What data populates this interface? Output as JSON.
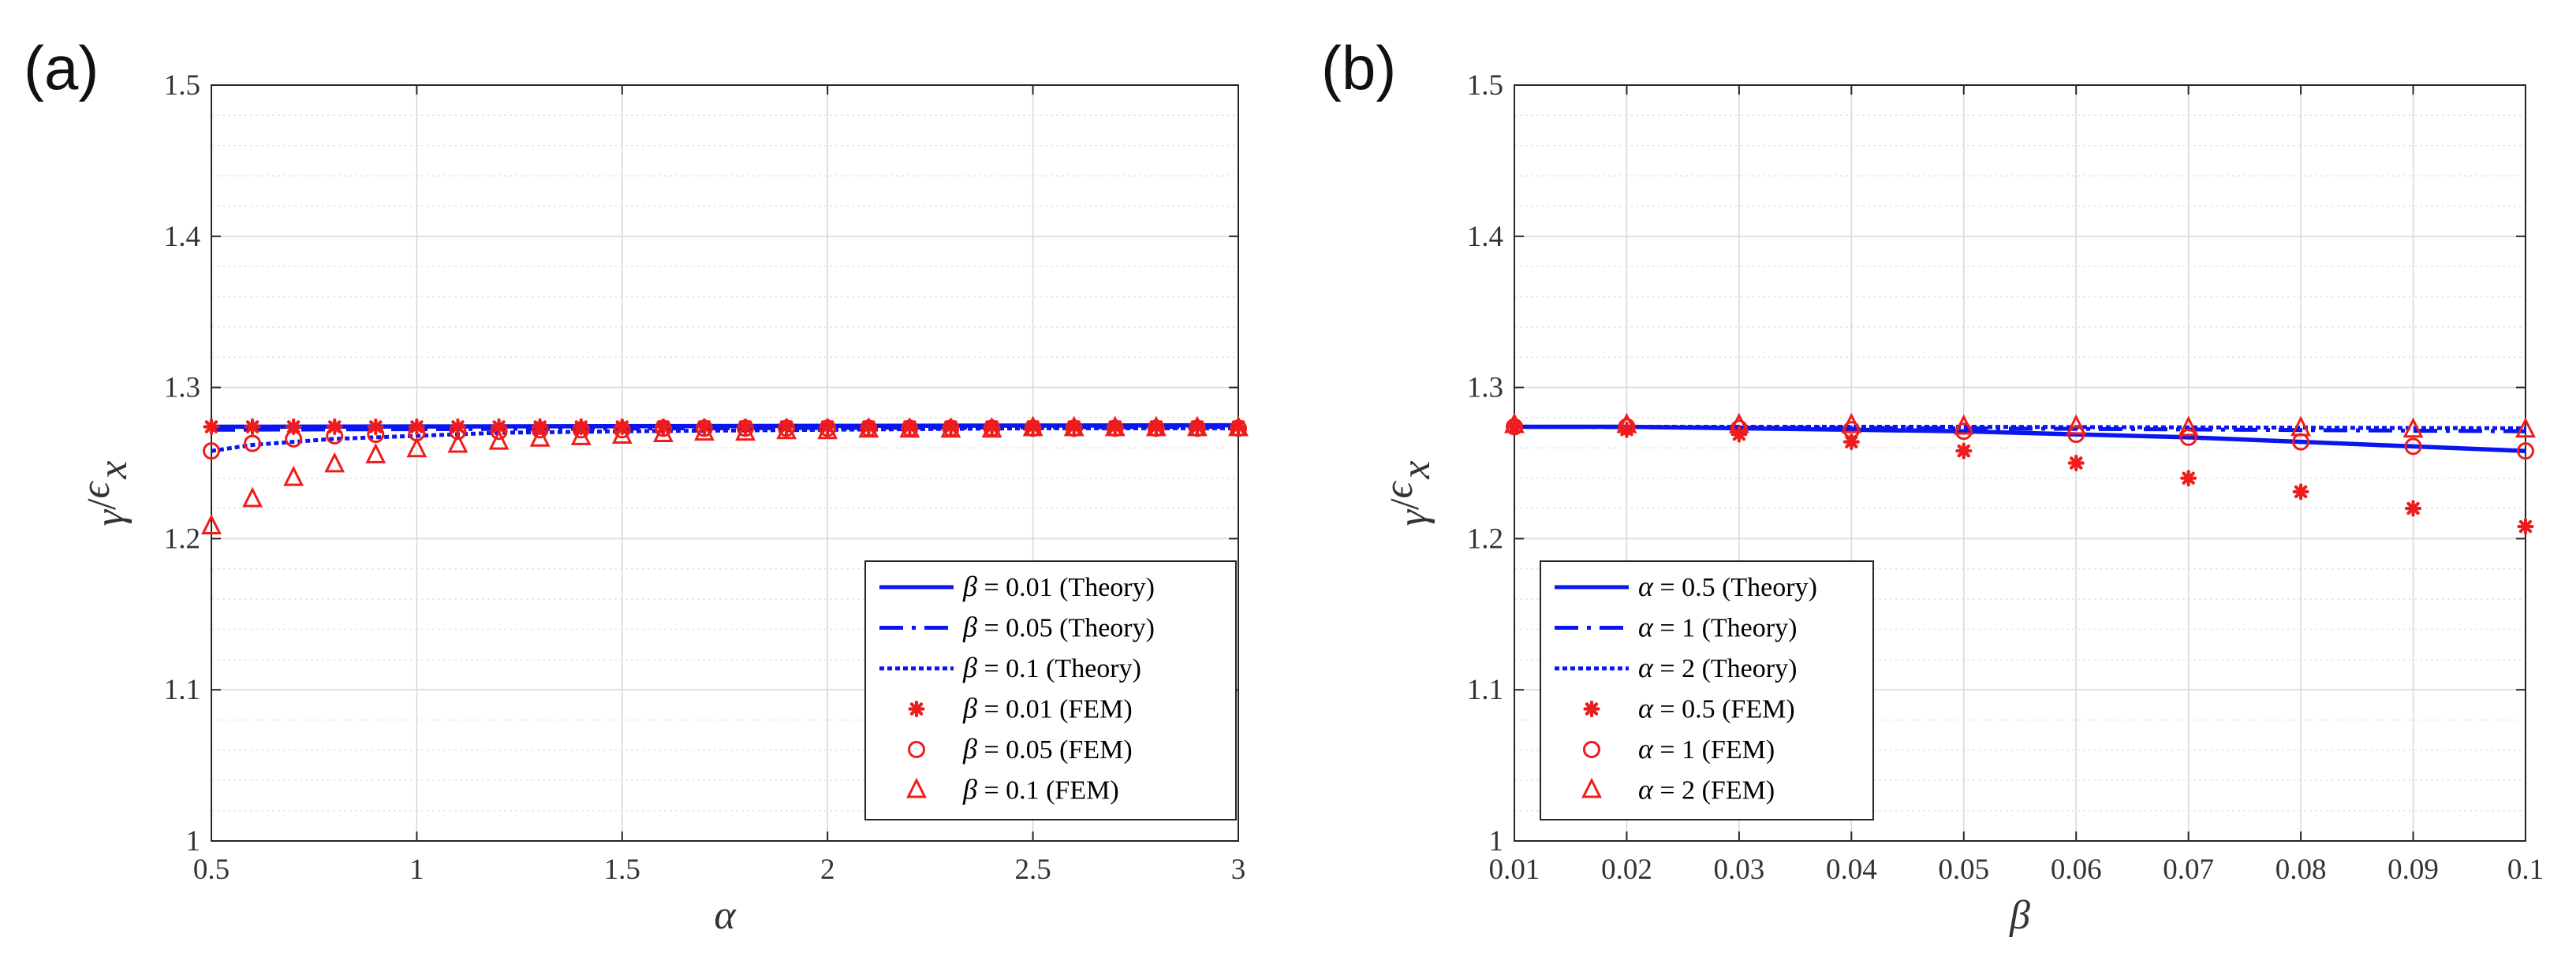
{
  "chart_data": [
    {
      "type": "line",
      "panel_label": "(a)",
      "xlabel": "α",
      "ylabel_num": "γ",
      "ylabel_den": "ϵ",
      "ylabel_sub": "x",
      "xlim": [
        0.5,
        3
      ],
      "ylim": [
        1,
        1.5
      ],
      "xticks": [
        0.5,
        1,
        1.5,
        2,
        2.5,
        3
      ],
      "xtick_labels": [
        "0.5",
        "1",
        "1.5",
        "2",
        "2.5",
        "3"
      ],
      "yticks": [
        1,
        1.1,
        1.2,
        1.3,
        1.4,
        1.5
      ],
      "ytick_labels": [
        "1",
        "1.1",
        "1.2",
        "1.3",
        "1.4",
        "1.5"
      ],
      "grid": true,
      "legend_position": "bottom-right",
      "theory_series": [
        {
          "symbol": "β",
          "label": " = 0.01 (Theory)",
          "style": "solid",
          "x": [
            0.5,
            3
          ],
          "y": [
            1.274,
            1.275
          ]
        },
        {
          "symbol": "β",
          "label": " = 0.05 (Theory)",
          "style": "dashdot",
          "x": [
            0.5,
            3
          ],
          "y": [
            1.272,
            1.274
          ]
        },
        {
          "symbol": "β",
          "label": " = 0.1 (Theory)",
          "style": "dotted",
          "x": [
            0.5,
            0.6,
            0.7,
            0.8,
            1,
            1.2,
            1.5,
            2,
            2.5,
            3
          ],
          "y": [
            1.258,
            1.262,
            1.264,
            1.266,
            1.268,
            1.27,
            1.271,
            1.272,
            1.273,
            1.273
          ]
        }
      ],
      "fem_series": [
        {
          "symbol": "β",
          "label": " = 0.01 (FEM)",
          "marker": "star",
          "x": [
            0.5,
            0.6,
            0.7,
            0.8,
            0.9,
            1.0,
            1.1,
            1.2,
            1.3,
            1.4,
            1.5,
            1.6,
            1.7,
            1.8,
            1.9,
            2.0,
            2.1,
            2.2,
            2.3,
            2.4,
            2.5,
            2.6,
            2.7,
            2.8,
            2.9,
            3.0
          ],
          "y": [
            1.274,
            1.274,
            1.274,
            1.274,
            1.274,
            1.274,
            1.274,
            1.274,
            1.274,
            1.274,
            1.274,
            1.274,
            1.274,
            1.274,
            1.274,
            1.274,
            1.274,
            1.274,
            1.274,
            1.274,
            1.274,
            1.274,
            1.274,
            1.274,
            1.274,
            1.274
          ]
        },
        {
          "symbol": "β",
          "label": " = 0.05 (FEM)",
          "marker": "circle",
          "x": [
            0.5,
            0.6,
            0.7,
            0.8,
            0.9,
            1.0,
            1.1,
            1.2,
            1.3,
            1.4,
            1.5,
            1.6,
            1.7,
            1.8,
            1.9,
            2.0,
            2.1,
            2.2,
            2.3,
            2.4,
            2.5,
            2.6,
            2.7,
            2.8,
            2.9,
            3.0
          ],
          "y": [
            1.258,
            1.263,
            1.266,
            1.268,
            1.269,
            1.27,
            1.271,
            1.271,
            1.272,
            1.272,
            1.272,
            1.273,
            1.273,
            1.273,
            1.273,
            1.273,
            1.273,
            1.273,
            1.273,
            1.273,
            1.273,
            1.273,
            1.273,
            1.273,
            1.273,
            1.273
          ]
        },
        {
          "symbol": "β",
          "label": " = 0.1 (FEM)",
          "marker": "triangle",
          "x": [
            0.5,
            0.6,
            0.7,
            0.8,
            0.9,
            1.0,
            1.1,
            1.2,
            1.3,
            1.4,
            1.5,
            1.6,
            1.7,
            1.8,
            1.9,
            2.0,
            2.1,
            2.2,
            2.3,
            2.4,
            2.5,
            2.6,
            2.7,
            2.8,
            2.9,
            3.0
          ],
          "y": [
            1.208,
            1.226,
            1.24,
            1.249,
            1.255,
            1.259,
            1.262,
            1.264,
            1.266,
            1.267,
            1.268,
            1.269,
            1.27,
            1.27,
            1.271,
            1.271,
            1.272,
            1.272,
            1.272,
            1.272,
            1.273,
            1.273,
            1.273,
            1.273,
            1.273,
            1.273
          ]
        }
      ]
    },
    {
      "type": "line",
      "panel_label": "(b)",
      "xlabel": "β",
      "ylabel_num": "γ",
      "ylabel_den": "ϵ",
      "ylabel_sub": "x",
      "xlim": [
        0.01,
        0.1
      ],
      "ylim": [
        1,
        1.5
      ],
      "xticks": [
        0.01,
        0.02,
        0.03,
        0.04,
        0.05,
        0.06,
        0.07,
        0.08,
        0.09,
        0.1
      ],
      "xtick_labels": [
        "0.01",
        "0.02",
        "0.03",
        "0.04",
        "0.05",
        "0.06",
        "0.07",
        "0.08",
        "0.09",
        "0.1"
      ],
      "yticks": [
        1,
        1.1,
        1.2,
        1.3,
        1.4,
        1.5
      ],
      "ytick_labels": [
        "1",
        "1.1",
        "1.2",
        "1.3",
        "1.4",
        "1.5"
      ],
      "grid": true,
      "legend_position": "bottom-left",
      "theory_series": [
        {
          "symbol": "α",
          "label": " = 0.5 (Theory)",
          "style": "solid",
          "x": [
            0.01,
            0.02,
            0.03,
            0.04,
            0.05,
            0.06,
            0.07,
            0.08,
            0.09,
            0.1
          ],
          "y": [
            1.274,
            1.274,
            1.273,
            1.272,
            1.271,
            1.269,
            1.267,
            1.264,
            1.261,
            1.258
          ]
        },
        {
          "symbol": "α",
          "label": " = 1 (Theory)",
          "style": "dashdot",
          "x": [
            0.01,
            0.05,
            0.1
          ],
          "y": [
            1.274,
            1.273,
            1.271
          ]
        },
        {
          "symbol": "α",
          "label": " = 2 (Theory)",
          "style": "dotted",
          "x": [
            0.01,
            0.05,
            0.1
          ],
          "y": [
            1.274,
            1.274,
            1.273
          ]
        }
      ],
      "fem_series": [
        {
          "symbol": "α",
          "label": " = 0.5 (FEM)",
          "marker": "star",
          "x": [
            0.01,
            0.02,
            0.03,
            0.04,
            0.05,
            0.06,
            0.07,
            0.08,
            0.09,
            0.1
          ],
          "y": [
            1.274,
            1.272,
            1.269,
            1.264,
            1.258,
            1.25,
            1.24,
            1.231,
            1.22,
            1.208
          ]
        },
        {
          "symbol": "α",
          "label": " = 1 (FEM)",
          "marker": "circle",
          "x": [
            0.01,
            0.02,
            0.03,
            0.04,
            0.05,
            0.06,
            0.07,
            0.08,
            0.09,
            0.1
          ],
          "y": [
            1.274,
            1.274,
            1.273,
            1.272,
            1.271,
            1.269,
            1.267,
            1.264,
            1.261,
            1.258
          ]
        },
        {
          "symbol": "α",
          "label": " = 2 (FEM)",
          "marker": "triangle",
          "x": [
            0.01,
            0.02,
            0.03,
            0.04,
            0.05,
            0.06,
            0.07,
            0.08,
            0.09,
            0.1
          ],
          "y": [
            1.275,
            1.275,
            1.275,
            1.275,
            1.274,
            1.274,
            1.273,
            1.273,
            1.272,
            1.272
          ]
        }
      ]
    }
  ]
}
